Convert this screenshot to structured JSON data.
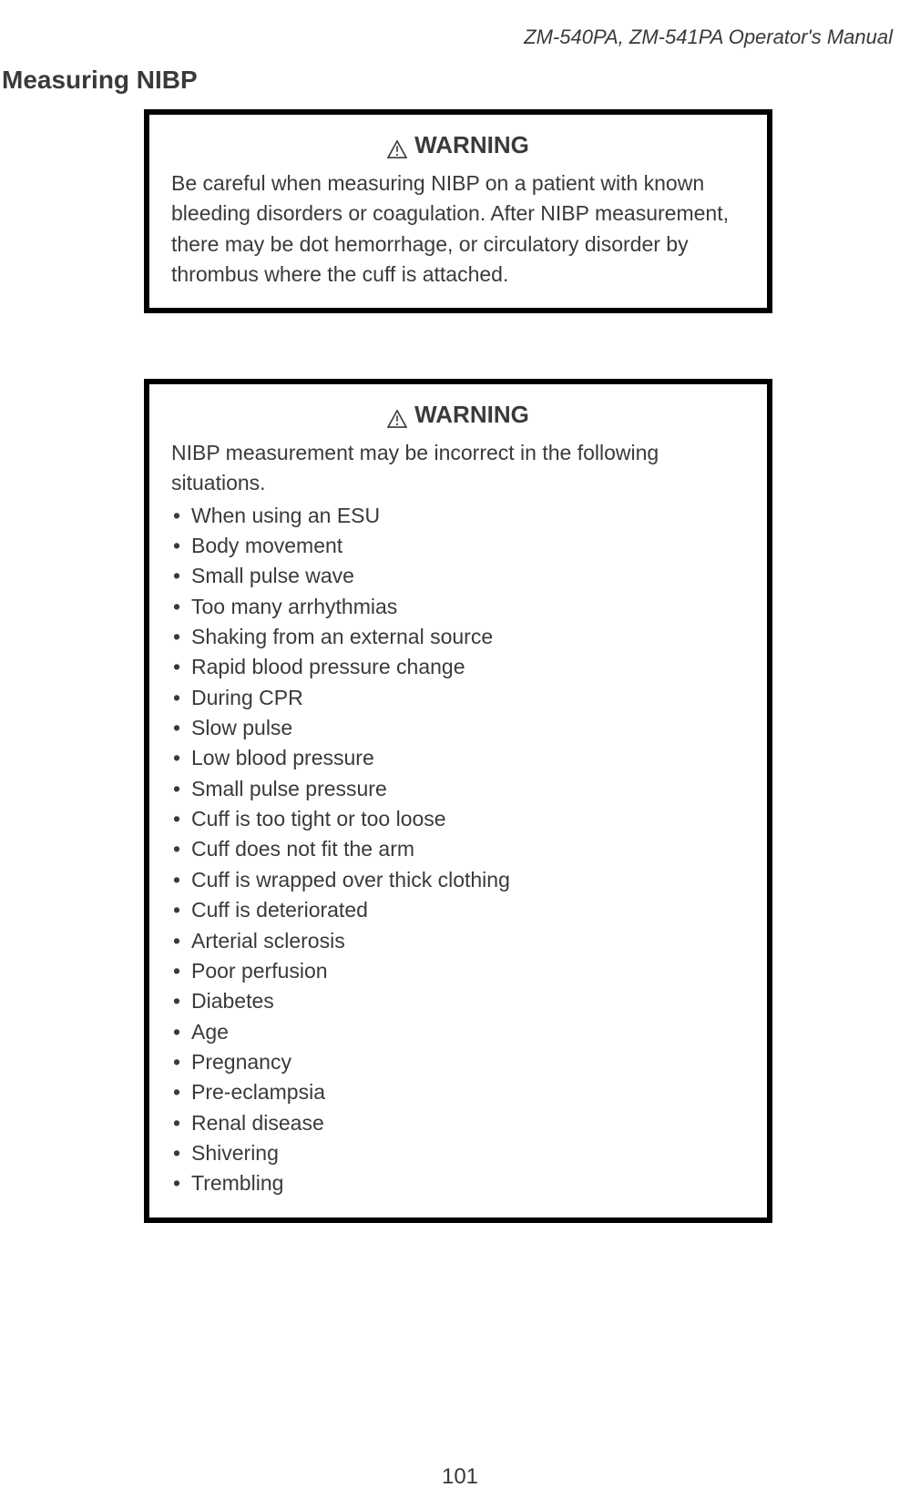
{
  "header": "ZM-540PA, ZM-541PA  Operator's Manual",
  "section_title": "Measuring NIBP",
  "warning1": {
    "heading": "WARNING",
    "text": "Be careful when measuring NIBP on a patient with known bleeding disorders or coagulation. After NIBP measurement, there may be dot hemorrhage, or circulatory disorder by thrombus where the cuff is attached."
  },
  "warning2": {
    "heading": "WARNING",
    "intro": "NIBP measurement may be incorrect in the following situations.",
    "items": [
      "When using an ESU",
      "Body movement",
      "Small pulse wave",
      "Too many arrhythmias",
      "Shaking from an external source",
      "Rapid blood pressure change",
      "During CPR",
      "Slow pulse",
      "Low blood pressure",
      "Small pulse pressure",
      "Cuff is too tight or too loose",
      "Cuff does not fit the arm",
      "Cuff is wrapped over thick clothing",
      "Cuff is deteriorated",
      "Arterial sclerosis",
      "Poor perfusion",
      "Diabetes",
      "Age",
      "Pregnancy",
      "Pre-eclampsia",
      "Renal disease",
      "Shivering",
      "Trembling"
    ]
  },
  "page_number": "101"
}
